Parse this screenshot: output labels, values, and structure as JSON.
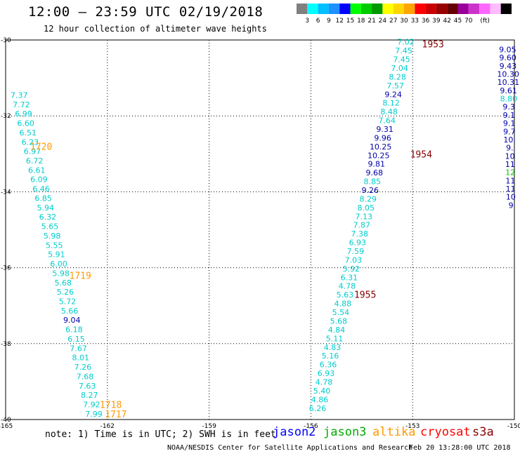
{
  "header": {
    "title": "12:00 – 23:59 UTC 02/19/2018",
    "subtitle": "12 hour collection of altimeter wave heights"
  },
  "colorbar": {
    "colors": [
      "#808080",
      "#00ffff",
      "#00bfff",
      "#1e90ff",
      "#0000ff",
      "#00ff00",
      "#00cc00",
      "#009900",
      "#ffff00",
      "#ffd700",
      "#ffa500",
      "#ff0000",
      "#cc0000",
      "#990000",
      "#660000",
      "#990099",
      "#cc33cc",
      "#ff66ff",
      "#ffbbff",
      "#000000"
    ],
    "labels": [
      "3",
      "6",
      "9",
      "12",
      "15",
      "18",
      "21",
      "24",
      "27",
      "30",
      "33",
      "36",
      "39",
      "42",
      "45",
      "70",
      "(ft)"
    ]
  },
  "axes": {
    "lon_ticks": [
      "-165",
      "-162",
      "-159",
      "-156",
      "-153",
      "-150"
    ],
    "lat_ticks": [
      "-30",
      "-32",
      "-34",
      "-36",
      "-38",
      "-40"
    ]
  },
  "time_labels": [
    {
      "text": "1720",
      "color": "#ff9900",
      "lon": -163.95,
      "lat": -32.8
    },
    {
      "text": "1719",
      "color": "#ff9900",
      "lon": -162.8,
      "lat": -36.2
    },
    {
      "text": "1718",
      "color": "#ff9900",
      "lon": -161.9,
      "lat": -39.6
    },
    {
      "text": "1717",
      "color": "#ff9900",
      "lon": -161.75,
      "lat": -39.85
    },
    {
      "text": "1953",
      "color": "#880000",
      "lon": -152.4,
      "lat": -30.1
    },
    {
      "text": "1954",
      "color": "#880000",
      "lon": -152.75,
      "lat": -33.0
    },
    {
      "text": "1955",
      "color": "#880000",
      "lon": -154.4,
      "lat": -36.7
    }
  ],
  "tracks": [
    {
      "name": "left-track",
      "start_lon": -164.6,
      "start_lat": -31.45,
      "end_lon": -162.4,
      "end_lat": -39.85,
      "values": [
        {
          "v": "7.37",
          "c": "#00cccc"
        },
        {
          "v": "7.72",
          "c": "#00cccc"
        },
        {
          "v": "6.99",
          "c": "#00cccc"
        },
        {
          "v": "6.60",
          "c": "#00cccc"
        },
        {
          "v": "6.51",
          "c": "#00cccc"
        },
        {
          "v": "6.23",
          "c": "#00cccc"
        },
        {
          "v": "6.97",
          "c": "#00cccc"
        },
        {
          "v": "6.72",
          "c": "#00cccc"
        },
        {
          "v": "6.61",
          "c": "#00cccc"
        },
        {
          "v": "6.09",
          "c": "#00cccc"
        },
        {
          "v": "6.46",
          "c": "#00cccc"
        },
        {
          "v": "6.85",
          "c": "#00cccc"
        },
        {
          "v": "5.94",
          "c": "#00cccc"
        },
        {
          "v": "6.32",
          "c": "#00cccc"
        },
        {
          "v": "5.65",
          "c": "#00cccc"
        },
        {
          "v": "5.98",
          "c": "#00cccc"
        },
        {
          "v": "5.55",
          "c": "#00cccc"
        },
        {
          "v": "5.91",
          "c": "#00cccc"
        },
        {
          "v": "6.00",
          "c": "#00cccc"
        },
        {
          "v": "5.98",
          "c": "#00cccc"
        },
        {
          "v": "5.68",
          "c": "#00cccc"
        },
        {
          "v": "5.26",
          "c": "#00cccc"
        },
        {
          "v": "5.72",
          "c": "#00cccc"
        },
        {
          "v": "5.66",
          "c": "#00cccc"
        },
        {
          "v": "9.04",
          "c": "#0000aa"
        },
        {
          "v": "6.18",
          "c": "#00cccc"
        },
        {
          "v": "6.15",
          "c": "#00cccc"
        },
        {
          "v": "7.67",
          "c": "#00cccc"
        },
        {
          "v": "8.01",
          "c": "#00cccc"
        },
        {
          "v": "7.26",
          "c": "#00cccc"
        },
        {
          "v": "7.68",
          "c": "#00cccc"
        },
        {
          "v": "7.63",
          "c": "#00cccc"
        },
        {
          "v": "8.27",
          "c": "#00cccc"
        },
        {
          "v": "7.92",
          "c": "#00cccc"
        },
        {
          "v": "7.99",
          "c": "#00cccc"
        }
      ]
    },
    {
      "name": "middle-track",
      "start_lon": -153.2,
      "start_lat": -30.05,
      "end_lon": -155.8,
      "end_lat": -39.7,
      "values": [
        {
          "v": "7.02",
          "c": "#00cccc"
        },
        {
          "v": "7.45",
          "c": "#00cccc"
        },
        {
          "v": "7.45",
          "c": "#00cccc"
        },
        {
          "v": "7.04",
          "c": "#00cccc"
        },
        {
          "v": "8.28",
          "c": "#00cccc"
        },
        {
          "v": "7.57",
          "c": "#00cccc"
        },
        {
          "v": "9.24",
          "c": "#0000aa"
        },
        {
          "v": "8.12",
          "c": "#00cccc"
        },
        {
          "v": "8.48",
          "c": "#00cccc"
        },
        {
          "v": "7.64",
          "c": "#00cccc"
        },
        {
          "v": "9.31",
          "c": "#0000aa"
        },
        {
          "v": "9.96",
          "c": "#0000aa"
        },
        {
          "v": "10.25",
          "c": "#0000aa"
        },
        {
          "v": "10.25",
          "c": "#0000aa"
        },
        {
          "v": "9.81",
          "c": "#0000aa"
        },
        {
          "v": "9.68",
          "c": "#0000aa"
        },
        {
          "v": "8.85",
          "c": "#00cccc"
        },
        {
          "v": "9.26",
          "c": "#0000aa"
        },
        {
          "v": "8.29",
          "c": "#00cccc"
        },
        {
          "v": "8.05",
          "c": "#00cccc"
        },
        {
          "v": "7.13",
          "c": "#00cccc"
        },
        {
          "v": "7.87",
          "c": "#00cccc"
        },
        {
          "v": "7.38",
          "c": "#00cccc"
        },
        {
          "v": "6.93",
          "c": "#00cccc"
        },
        {
          "v": "7.59",
          "c": "#00cccc"
        },
        {
          "v": "7.03",
          "c": "#00cccc"
        },
        {
          "v": "5.92",
          "c": "#00cccc"
        },
        {
          "v": "6.31",
          "c": "#00cccc"
        },
        {
          "v": "4.78",
          "c": "#00cccc"
        },
        {
          "v": "5.63",
          "c": "#00cccc"
        },
        {
          "v": "4.88",
          "c": "#00cccc"
        },
        {
          "v": "5.54",
          "c": "#00cccc"
        },
        {
          "v": "5.68",
          "c": "#00cccc"
        },
        {
          "v": "4.84",
          "c": "#00cccc"
        },
        {
          "v": "5.11",
          "c": "#00cccc"
        },
        {
          "v": "4.83",
          "c": "#00cccc"
        },
        {
          "v": "5.16",
          "c": "#00cccc"
        },
        {
          "v": "6.36",
          "c": "#00cccc"
        },
        {
          "v": "6.93",
          "c": "#00cccc"
        },
        {
          "v": "4.78",
          "c": "#00cccc"
        },
        {
          "v": "5.40",
          "c": "#00cccc"
        },
        {
          "v": "4.86",
          "c": "#00cccc"
        },
        {
          "v": "6.26",
          "c": "#00cccc"
        }
      ]
    },
    {
      "name": "right-track",
      "start_lon": -150.2,
      "start_lat": -30.25,
      "end_lon": -150.1,
      "end_lat": -34.35,
      "values": [
        {
          "v": "9.05",
          "c": "#0000aa"
        },
        {
          "v": "9.60",
          "c": "#0000aa"
        },
        {
          "v": "9.43",
          "c": "#0000aa"
        },
        {
          "v": "10.30",
          "c": "#0000aa"
        },
        {
          "v": "10.31",
          "c": "#0000aa"
        },
        {
          "v": "9.61",
          "c": "#0000aa"
        },
        {
          "v": "8.80",
          "c": "#00cccc"
        },
        {
          "v": "9.3",
          "c": "#0000aa"
        },
        {
          "v": "9.1",
          "c": "#0000aa"
        },
        {
          "v": "9.1",
          "c": "#0000aa"
        },
        {
          "v": "9.7",
          "c": "#0000aa"
        },
        {
          "v": "10.",
          "c": "#0000aa"
        },
        {
          "v": "9.",
          "c": "#0000aa"
        },
        {
          "v": "10",
          "c": "#0000aa"
        },
        {
          "v": "11",
          "c": "#0000aa"
        },
        {
          "v": "12",
          "c": "#00cc00"
        },
        {
          "v": "11",
          "c": "#0000aa"
        },
        {
          "v": "11",
          "c": "#0000aa"
        },
        {
          "v": "10",
          "c": "#0000aa"
        },
        {
          "v": "9",
          "c": "#0000aa"
        }
      ]
    }
  ],
  "footer": {
    "note": "note: 1) Time is in UTC; 2) SWH is in feet",
    "satellites": [
      {
        "name": "jason2",
        "color": "#0000ff"
      },
      {
        "name": "jason3",
        "color": "#00aa00"
      },
      {
        "name": "altika",
        "color": "#ff9900"
      },
      {
        "name": "cryosat",
        "color": "#ff0000"
      },
      {
        "name": "s3a",
        "color": "#880000"
      }
    ],
    "credit": "NOAA/NESDIS Center for Satellite Applications and Research",
    "timestamp": "Feb 20 13:28:00 UTC 2018"
  }
}
